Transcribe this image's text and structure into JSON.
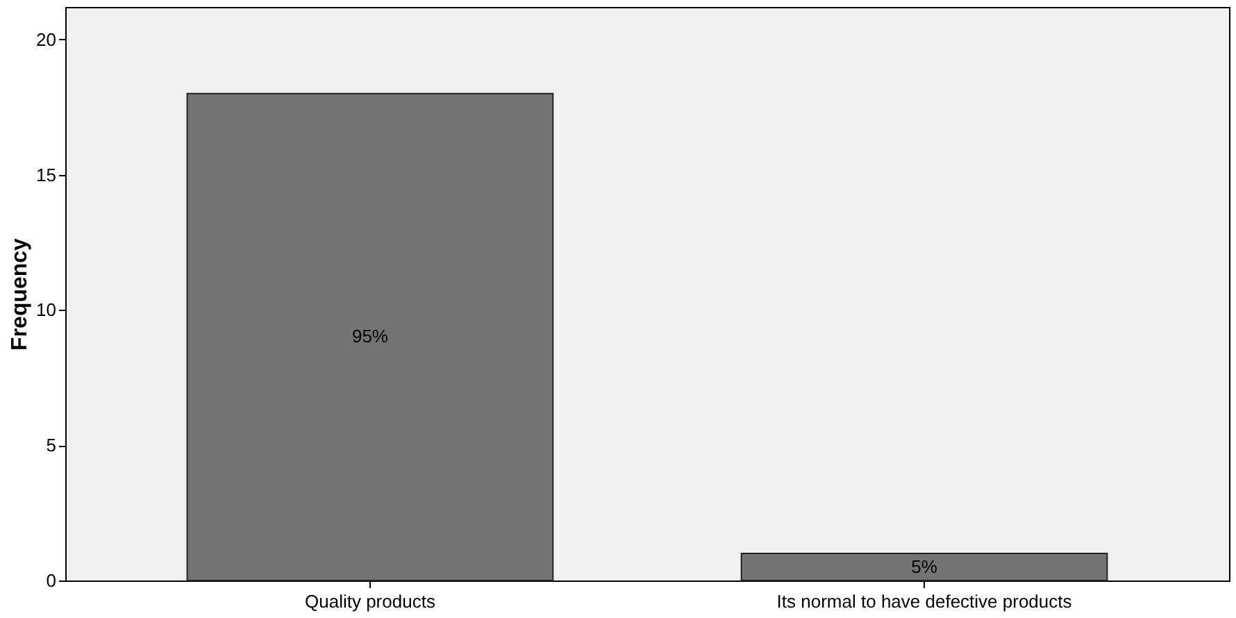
{
  "chart_data": {
    "type": "bar",
    "ylabel": "Frequency",
    "categories": [
      "Quality products",
      "Its normal to have defective products"
    ],
    "values": [
      18,
      1
    ],
    "annotations": [
      "95%",
      "5%"
    ],
    "color": "#737373",
    "ylim": [
      0,
      21.2
    ],
    "yticks": [
      0,
      5,
      10,
      15,
      20
    ],
    "grid": false
  }
}
